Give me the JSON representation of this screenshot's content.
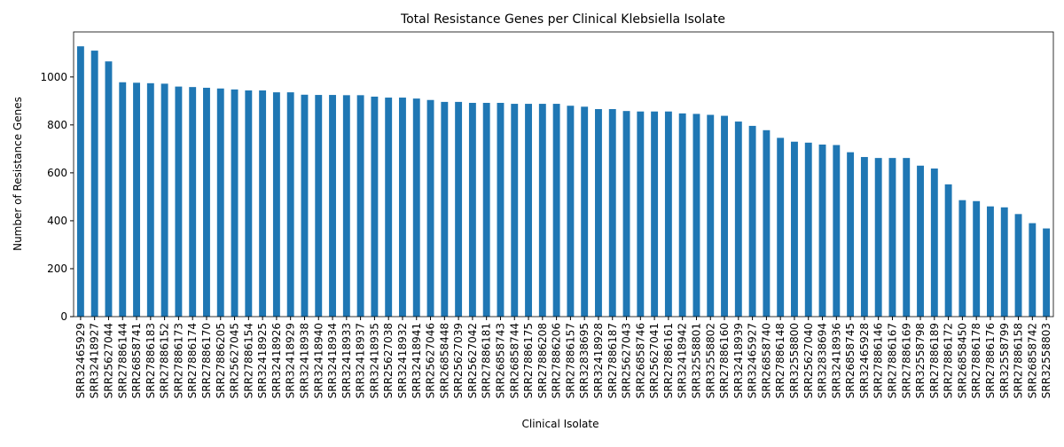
{
  "chart_data": {
    "type": "bar",
    "title": "Total Resistance Genes per Clinical Klebsiella Isolate",
    "x_label": "Clinical Isolate",
    "y_label": "Number of Resistance Genes",
    "color": "#1f77b4",
    "categories": [
      "SRR32465929",
      "SRR32418927",
      "SRR25627044",
      "SRR27886144",
      "SRR26858741",
      "SRR27886183",
      "SRR27886152",
      "SRR27886173",
      "SRR27886174",
      "SRR27886170",
      "SRR27886205",
      "SRR25627045",
      "SRR27886154",
      "SRR32418925",
      "SRR32418926",
      "SRR32418929",
      "SRR32418938",
      "SRR32418940",
      "SRR32418934",
      "SRR32418933",
      "SRR32418937",
      "SRR32418935",
      "SRR25627038",
      "SRR32418932",
      "SRR32418941",
      "SRR25627046",
      "SRR26858448",
      "SRR25627039",
      "SRR25627042",
      "SRR27886181",
      "SRR26858743",
      "SRR26858744",
      "SRR27886175",
      "SRR27886208",
      "SRR27886206",
      "SRR27886157",
      "SRR32838695",
      "SRR32418928",
      "SRR27886187",
      "SRR25627043",
      "SRR26858746",
      "SRR25627041",
      "SRR27886161",
      "SRR32418942",
      "SRR32558801",
      "SRR32558802",
      "SRR27886160",
      "SRR32418939",
      "SRR32465927",
      "SRR26858740",
      "SRR27886148",
      "SRR32558800",
      "SRR25627040",
      "SRR32838694",
      "SRR32418936",
      "SRR26858745",
      "SRR32465928",
      "SRR27886146",
      "SRR27886167",
      "SRR27886169",
      "SRR32558798",
      "SRR27886189",
      "SRR27886172",
      "SRR26858450",
      "SRR27886178",
      "SRR27886176",
      "SRR32558799",
      "SRR27886158",
      "SRR26858742",
      "SRR32558803"
    ],
    "values": [
      1128,
      1110,
      1065,
      978,
      976,
      974,
      972,
      960,
      958,
      955,
      952,
      948,
      944,
      944,
      936,
      936,
      926,
      925,
      925,
      924,
      924,
      918,
      914,
      914,
      910,
      904,
      896,
      896,
      892,
      892,
      892,
      888,
      888,
      888,
      888,
      880,
      876,
      866,
      866,
      858,
      856,
      856,
      856,
      848,
      846,
      842,
      838,
      814,
      796,
      778,
      746,
      730,
      726,
      718,
      716,
      686,
      666,
      662,
      662,
      662,
      630,
      618,
      552,
      486,
      482,
      460,
      456,
      428,
      390,
      368
    ],
    "ylim": [
      0,
      1188
    ],
    "yticks": [
      0,
      200,
      400,
      600,
      800,
      1000
    ]
  }
}
